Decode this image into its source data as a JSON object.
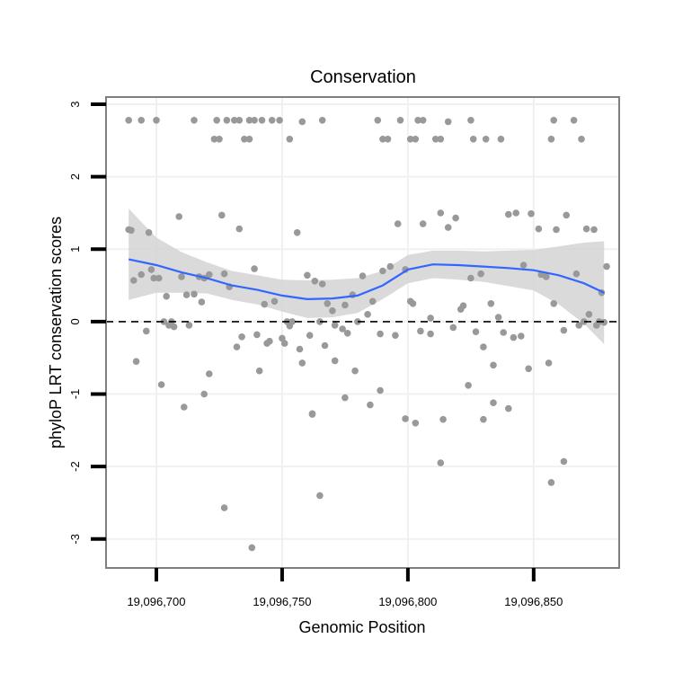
{
  "chart_data": {
    "type": "scatter",
    "title": "Conservation",
    "xlabel": "Genomic Position",
    "ylabel": "phyloP LRT conservation scores",
    "xlim": [
      19096680,
      19096884
    ],
    "ylim": [
      -3.4,
      3.1
    ],
    "x_ticks": [
      19096700,
      19096750,
      19096800,
      19096850
    ],
    "x_tick_labels": [
      "19,096,700",
      "19,096,750",
      "19,096,800",
      "19,096,850"
    ],
    "y_ticks": [
      -3,
      -2,
      -1,
      0,
      1,
      2,
      3
    ],
    "y_tick_labels": [
      "-3",
      "-2",
      "-1",
      "0",
      "1",
      "2",
      "3"
    ],
    "reference_line": {
      "y": 0,
      "style": "dashed"
    },
    "grid": true,
    "colors": {
      "points": "#999999",
      "smooth_line": "#3366ff",
      "ribbon": "#d3d3d3",
      "panel_border": "#7f7f7f",
      "grid": "#f0f0f0"
    },
    "series": [
      {
        "type": "scatter",
        "x": [
          19096689,
          19096694,
          19096700,
          19096715,
          19096724,
          19096728,
          19096731,
          19096733,
          19096737,
          19096739,
          19096742,
          19096746,
          19096749,
          19096758,
          19096766,
          19096788,
          19096797,
          19096804,
          19096806,
          19096816,
          19096825,
          19096858,
          19096866,
          19096723,
          19096725,
          19096735,
          19096737,
          19096753,
          19096790,
          19096792,
          19096801,
          19096803,
          19096811,
          19096813,
          19096826,
          19096831,
          19096837,
          19096857,
          19096869,
          19096689,
          19096690,
          19096694,
          19096697,
          19096698,
          19096701,
          19096704,
          19096706,
          19096709,
          19096712,
          19096715,
          19096717,
          19096719,
          19096721,
          19096726,
          19096727,
          19096729,
          19096733,
          19096739,
          19096743,
          19096747,
          19096752,
          19096756,
          19096760,
          19096763,
          19096766,
          19096768,
          19096770,
          19096775,
          19096778,
          19096782,
          19096786,
          19096790,
          19096793,
          19096796,
          19096799,
          19096802,
          19096806,
          19096809,
          19096813,
          19096816,
          19096819,
          19096822,
          19096825,
          19096829,
          19096833,
          19096836,
          19096840,
          19096843,
          19096846,
          19096849,
          19096852,
          19096855,
          19096859,
          19096863,
          19096867,
          19096871,
          19096874,
          19096877,
          19096879,
          19096691,
          19096696,
          19096699,
          19096703,
          19096705,
          19096707,
          19096710,
          19096713,
          19096718,
          19096721,
          19096734,
          19096740,
          19096744,
          19096750,
          19096754,
          19096757,
          19096761,
          19096765,
          19096771,
          19096774,
          19096776,
          19096780,
          19096784,
          19096789,
          19096795,
          19096801,
          19096805,
          19096809,
          19096818,
          19096821,
          19096827,
          19096830,
          19096834,
          19096838,
          19096842,
          19096845,
          19096853,
          19096858,
          19096862,
          19096868,
          19096872,
          19096876,
          19096878,
          19096875,
          19096870,
          19096692,
          19096702,
          19096711,
          19096719,
          19096732,
          19096741,
          19096745,
          19096751,
          19096753,
          19096758,
          19096762,
          19096767,
          19096771,
          19096775,
          19096779,
          19096785,
          19096789,
          19096799,
          19096803,
          19096814,
          19096824,
          19096830,
          19096834,
          19096840,
          19096848,
          19096856,
          19096727,
          19096738,
          19096762,
          19096765,
          19096813,
          19096857,
          19096862
        ],
        "y": [
          2.78,
          2.78,
          2.78,
          2.78,
          2.78,
          2.78,
          2.78,
          2.78,
          2.78,
          2.78,
          2.78,
          2.78,
          2.78,
          2.76,
          2.78,
          2.78,
          2.78,
          2.78,
          2.78,
          2.76,
          2.78,
          2.78,
          2.78,
          2.52,
          2.52,
          2.52,
          2.52,
          2.52,
          2.52,
          2.52,
          2.52,
          2.52,
          2.52,
          2.52,
          2.52,
          2.52,
          2.52,
          2.52,
          2.52,
          1.27,
          1.26,
          0.65,
          1.23,
          0.72,
          0.6,
          0.35,
          0.0,
          1.45,
          0.37,
          0.38,
          0.62,
          0.6,
          0.65,
          1.47,
          0.66,
          0.48,
          1.28,
          0.73,
          0.24,
          0.28,
          0.0,
          1.23,
          0.64,
          0.56,
          0.52,
          0.25,
          0.15,
          0.23,
          0.37,
          0.63,
          0.28,
          0.7,
          0.76,
          1.35,
          0.72,
          0.25,
          1.35,
          0.05,
          1.5,
          1.3,
          1.43,
          0.22,
          0.6,
          0.66,
          0.25,
          0.06,
          1.48,
          1.5,
          0.78,
          1.49,
          1.28,
          0.62,
          1.27,
          1.47,
          0.66,
          1.28,
          1.27,
          0.4,
          0.76,
          0.57,
          -0.13,
          0.6,
          0.0,
          -0.05,
          -0.07,
          0.62,
          -0.05,
          0.27,
          -0.72,
          -0.21,
          -0.18,
          -0.3,
          -0.23,
          0.0,
          -0.38,
          -0.19,
          0.0,
          -0.05,
          -0.1,
          -0.16,
          0.0,
          0.1,
          -0.17,
          -0.19,
          0.28,
          -0.13,
          -0.17,
          -0.08,
          0.17,
          -0.14,
          -0.35,
          -0.6,
          -0.15,
          -0.22,
          -0.2,
          0.65,
          0.25,
          -0.12,
          -0.05,
          0.1,
          0.0,
          -0.01,
          -0.05,
          0.0,
          -0.55,
          -0.87,
          -1.18,
          -1.0,
          -0.35,
          -0.68,
          -0.27,
          -0.3,
          -0.06,
          -0.57,
          -1.27,
          -0.33,
          -0.54,
          -1.05,
          -0.68,
          -1.15,
          -0.95,
          -1.34,
          -1.4,
          -1.35,
          -0.88,
          -1.35,
          -1.12,
          -1.2,
          -0.65,
          -0.57,
          -2.57,
          -3.12,
          -1.28,
          -2.4,
          -1.95,
          -2.22,
          -1.93
        ]
      },
      {
        "type": "smooth",
        "x": [
          19096689,
          19096700,
          19096710,
          19096720,
          19096730,
          19096740,
          19096750,
          19096760,
          19096770,
          19096780,
          19096790,
          19096800,
          19096810,
          19096820,
          19096830,
          19096840,
          19096850,
          19096860,
          19096870,
          19096878
        ],
        "y": [
          0.86,
          0.78,
          0.68,
          0.6,
          0.5,
          0.44,
          0.36,
          0.31,
          0.32,
          0.36,
          0.5,
          0.72,
          0.79,
          0.78,
          0.76,
          0.74,
          0.71,
          0.64,
          0.53,
          0.4
        ],
        "lower": [
          0.3,
          0.4,
          0.4,
          0.39,
          0.3,
          0.24,
          0.14,
          0.05,
          0.06,
          0.12,
          0.31,
          0.53,
          0.6,
          0.58,
          0.55,
          0.49,
          0.43,
          0.24,
          -0.03,
          -0.31
        ],
        "upper": [
          1.56,
          1.16,
          0.96,
          0.82,
          0.7,
          0.64,
          0.58,
          0.57,
          0.58,
          0.6,
          0.7,
          0.92,
          0.98,
          0.98,
          0.97,
          0.98,
          0.99,
          1.04,
          1.09,
          1.11
        ]
      }
    ]
  }
}
